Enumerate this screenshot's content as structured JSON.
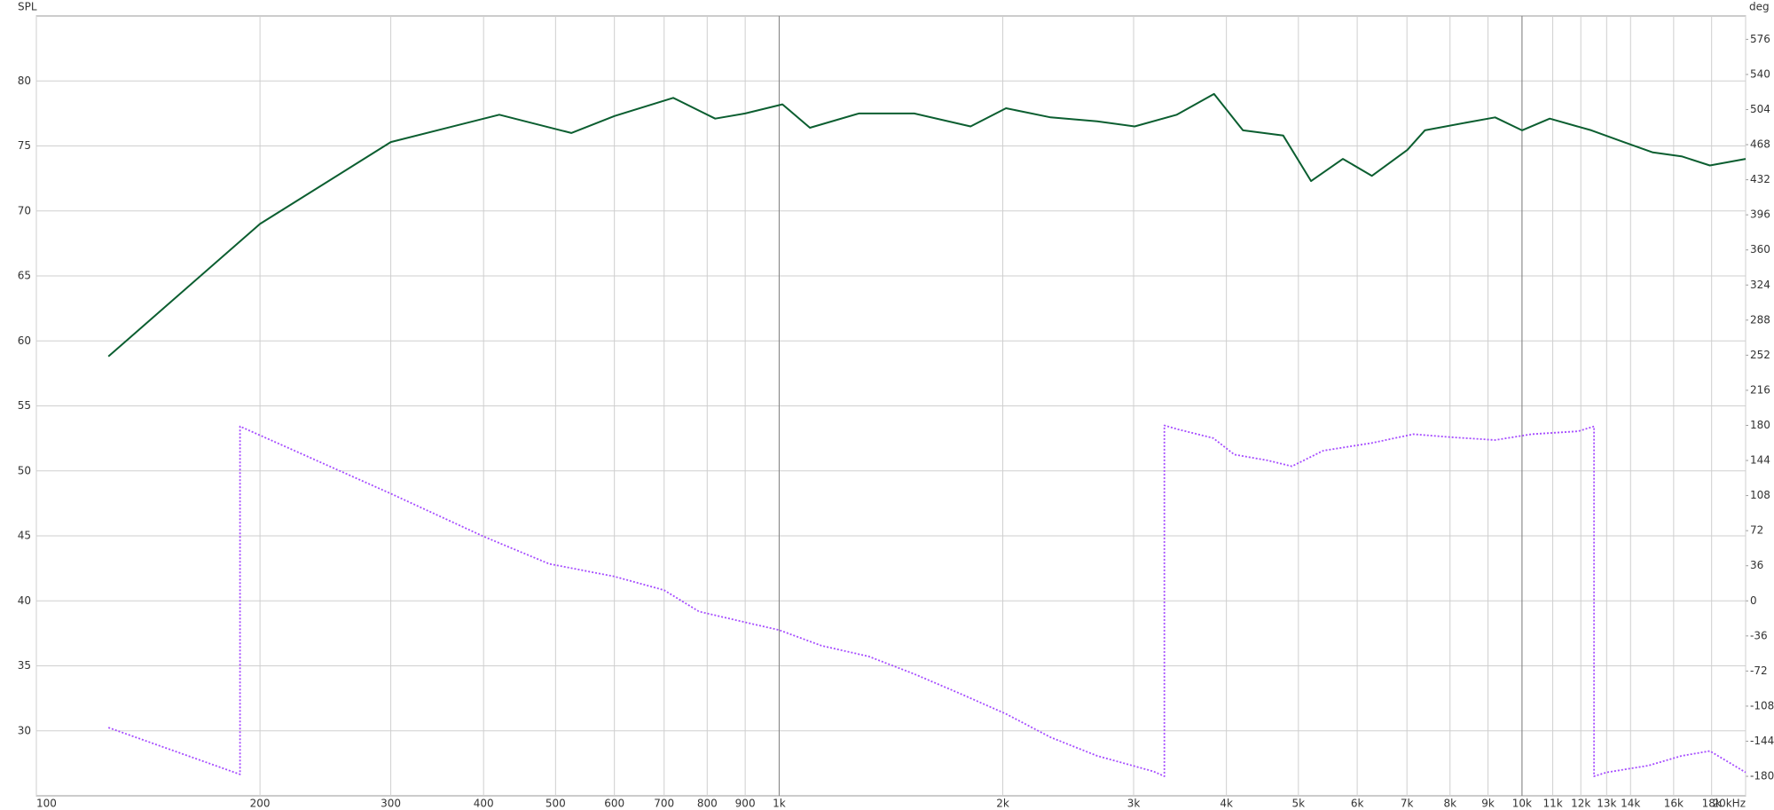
{
  "chart_data": {
    "type": "line",
    "y_label": "SPL",
    "y2_label": "deg",
    "log_x": true,
    "grid": true,
    "xlim": [
      100,
      20000
    ],
    "xticks": [
      100,
      200,
      300,
      400,
      500,
      600,
      700,
      800,
      900,
      {
        "value": 1000,
        "label": "1k"
      },
      {
        "value": 2000,
        "label": "2k"
      },
      {
        "value": 3000,
        "label": "3k"
      },
      {
        "value": 4000,
        "label": "4k"
      },
      {
        "value": 5000,
        "label": "5k"
      },
      {
        "value": 6000,
        "label": "6k"
      },
      {
        "value": 7000,
        "label": "7k"
      },
      {
        "value": 8000,
        "label": "8k"
      },
      {
        "value": 9000,
        "label": "9k"
      },
      {
        "value": 10000,
        "label": "10k"
      },
      {
        "value": 11000,
        "label": "11k"
      },
      {
        "value": 12000,
        "label": "12k"
      },
      {
        "value": 13000,
        "label": "13k"
      },
      {
        "value": 14000,
        "label": "14k"
      },
      {
        "value": 16000,
        "label": "16k"
      },
      {
        "value": 18000,
        "label": "18k"
      },
      {
        "value": 20000,
        "label": "20kHz"
      }
    ],
    "major_x": [
      1000,
      10000
    ],
    "ylim": [
      25,
      85
    ],
    "yticks": [
      30,
      35,
      40,
      45,
      50,
      55,
      60,
      65,
      70,
      75,
      80
    ],
    "y2lim": [
      -200,
      600
    ],
    "y2ticks": [
      -180,
      -144,
      -108,
      -72,
      -36,
      0,
      36,
      72,
      108,
      144,
      180,
      216,
      252,
      288,
      324,
      360,
      396,
      432,
      468,
      504,
      540,
      576
    ],
    "series": [
      {
        "color": "#0b5e30",
        "style": "solid",
        "x": [
          125,
          200,
          300,
          420,
          525,
          600,
          720,
          820,
          900,
          1010,
          1100,
          1280,
          1520,
          1810,
          2020,
          2320,
          2680,
          3010,
          3430,
          3850,
          4210,
          4770,
          5200,
          5740,
          6280,
          7010,
          7400,
          8420,
          9200,
          10000,
          10900,
          12400,
          13700,
          15000,
          16400,
          17900,
          20000
        ],
        "values": [
          58.8,
          69.0,
          75.3,
          77.4,
          76.0,
          77.3,
          78.7,
          77.1,
          77.5,
          78.2,
          76.4,
          77.5,
          77.5,
          76.5,
          77.9,
          77.2,
          76.9,
          76.5,
          77.4,
          79.0,
          76.2,
          75.8,
          72.3,
          74.0,
          72.7,
          74.7,
          76.2,
          76.8,
          77.2,
          76.2,
          77.1,
          76.2,
          75.3,
          74.5,
          74.2,
          73.5,
          74.0
        ]
      },
      {
        "color": "#a64dff",
        "style": "dotted",
        "axis": "y2",
        "x": [
          125,
          188,
          188,
          300,
          400,
          490,
          600,
          700,
          780,
          900,
          1000,
          1140,
          1320,
          1520,
          1750,
          2020,
          2320,
          2680,
          3190,
          3300,
          3300,
          3440,
          3840,
          4100,
          4550,
          4900,
          5400,
          6280,
          7140,
          8000,
          9200,
          10300,
          11900,
          12500,
          12500,
          13000,
          14800,
          16400,
          17900,
          20000
        ],
        "values": [
          -130,
          -178,
          179,
          110,
          66,
          38,
          25,
          11,
          -11,
          -22,
          -30,
          -46,
          -57,
          -75,
          -95,
          -116,
          -140,
          -159,
          -175,
          -180,
          180,
          176,
          167,
          150,
          144,
          138,
          154,
          162,
          171,
          168,
          165,
          171,
          174,
          179,
          -180,
          -176,
          -169,
          -159,
          -154,
          -176
        ]
      }
    ]
  }
}
